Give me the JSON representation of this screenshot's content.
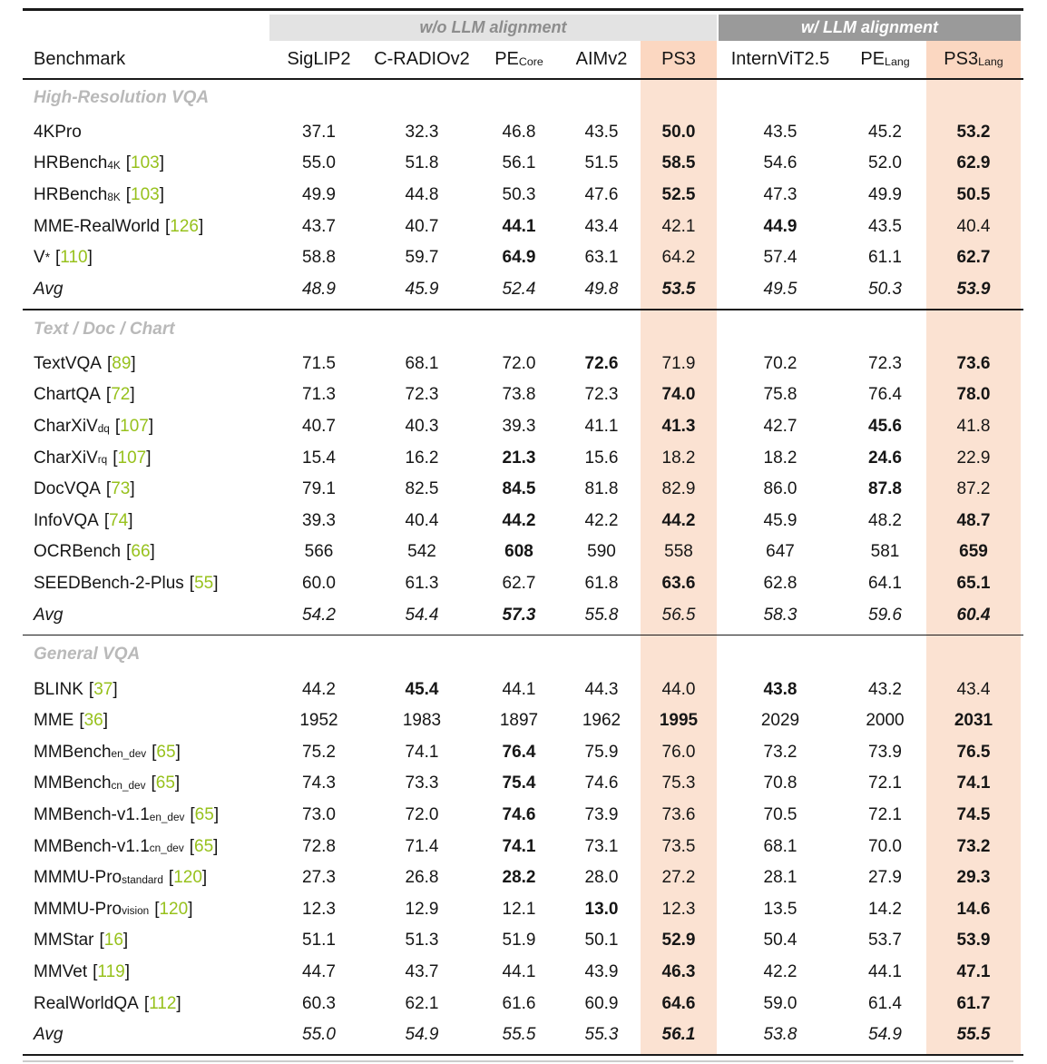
{
  "table": {
    "benchmark_header": "Benchmark",
    "groups": [
      {
        "label": "w/o LLM alignment"
      },
      {
        "label": "w/ LLM alignment"
      }
    ],
    "columns": [
      {
        "name": "SigLIP2",
        "sub": "",
        "group": 0,
        "highlight": false
      },
      {
        "name": "C-RADIOv2",
        "sub": "",
        "group": 0,
        "highlight": false
      },
      {
        "name": "PE",
        "sub": "Core",
        "group": 0,
        "highlight": false
      },
      {
        "name": "AIMv2",
        "sub": "",
        "group": 0,
        "highlight": false
      },
      {
        "name": "PS3",
        "sub": "",
        "group": 0,
        "highlight": true
      },
      {
        "name": "InternViT2.5",
        "sub": "",
        "group": 1,
        "highlight": false
      },
      {
        "name": "PE",
        "sub": "Lang",
        "group": 1,
        "highlight": false
      },
      {
        "name": "PS3",
        "sub": "Lang",
        "group": 1,
        "highlight": true
      }
    ],
    "sections": [
      {
        "title": "High-Resolution VQA",
        "rows": [
          {
            "name": "4KPro",
            "sub": "",
            "sup": "",
            "cite": "",
            "italic": false,
            "values": [
              "37.1",
              "32.3",
              "46.8",
              "43.5",
              "50.0",
              "43.5",
              "45.2",
              "53.2"
            ],
            "bold": [
              false,
              false,
              false,
              false,
              true,
              false,
              false,
              true
            ]
          },
          {
            "name": "HRBench",
            "sub": "4K",
            "sup": "",
            "cite": "103",
            "italic": false,
            "values": [
              "55.0",
              "51.8",
              "56.1",
              "51.5",
              "58.5",
              "54.6",
              "52.0",
              "62.9"
            ],
            "bold": [
              false,
              false,
              false,
              false,
              true,
              false,
              false,
              true
            ]
          },
          {
            "name": "HRBench",
            "sub": "8K",
            "sup": "",
            "cite": "103",
            "italic": false,
            "values": [
              "49.9",
              "44.8",
              "50.3",
              "47.6",
              "52.5",
              "47.3",
              "49.9",
              "50.5"
            ],
            "bold": [
              false,
              false,
              false,
              false,
              true,
              false,
              false,
              true
            ]
          },
          {
            "name": "MME-RealWorld",
            "sub": "",
            "sup": "",
            "cite": "126",
            "italic": false,
            "values": [
              "43.7",
              "40.7",
              "44.1",
              "43.4",
              "42.1",
              "44.9",
              "43.5",
              "40.4"
            ],
            "bold": [
              false,
              false,
              true,
              false,
              false,
              true,
              false,
              false
            ]
          },
          {
            "name": "V",
            "sub": "",
            "sup": "*",
            "cite": "110",
            "italic": false,
            "values": [
              "58.8",
              "59.7",
              "64.9",
              "63.1",
              "64.2",
              "57.4",
              "61.1",
              "62.7"
            ],
            "bold": [
              false,
              false,
              true,
              false,
              false,
              false,
              false,
              true
            ]
          },
          {
            "name": "Avg",
            "sub": "",
            "sup": "",
            "cite": "",
            "italic": true,
            "values": [
              "48.9",
              "45.9",
              "52.4",
              "49.8",
              "53.5",
              "49.5",
              "50.3",
              "53.9"
            ],
            "bold": [
              false,
              false,
              false,
              false,
              true,
              false,
              false,
              true
            ]
          }
        ]
      },
      {
        "title": "Text / Doc / Chart",
        "rows": [
          {
            "name": "TextVQA",
            "sub": "",
            "sup": "",
            "cite": "89",
            "italic": false,
            "values": [
              "71.5",
              "68.1",
              "72.0",
              "72.6",
              "71.9",
              "70.2",
              "72.3",
              "73.6"
            ],
            "bold": [
              false,
              false,
              false,
              true,
              false,
              false,
              false,
              true
            ]
          },
          {
            "name": "ChartQA",
            "sub": "",
            "sup": "",
            "cite": "72",
            "italic": false,
            "values": [
              "71.3",
              "72.3",
              "73.8",
              "72.3",
              "74.0",
              "75.8",
              "76.4",
              "78.0"
            ],
            "bold": [
              false,
              false,
              false,
              false,
              true,
              false,
              false,
              true
            ]
          },
          {
            "name": "CharXiV",
            "sub": "dq",
            "sup": "",
            "cite": "107",
            "italic": false,
            "values": [
              "40.7",
              "40.3",
              "39.3",
              "41.1",
              "41.3",
              "42.7",
              "45.6",
              "41.8"
            ],
            "bold": [
              false,
              false,
              false,
              false,
              true,
              false,
              true,
              false
            ]
          },
          {
            "name": "CharXiV",
            "sub": "rq",
            "sup": "",
            "cite": "107",
            "italic": false,
            "values": [
              "15.4",
              "16.2",
              "21.3",
              "15.6",
              "18.2",
              "18.2",
              "24.6",
              "22.9"
            ],
            "bold": [
              false,
              false,
              true,
              false,
              false,
              false,
              true,
              false
            ]
          },
          {
            "name": "DocVQA",
            "sub": "",
            "sup": "",
            "cite": "73",
            "italic": false,
            "values": [
              "79.1",
              "82.5",
              "84.5",
              "81.8",
              "82.9",
              "86.0",
              "87.8",
              "87.2"
            ],
            "bold": [
              false,
              false,
              true,
              false,
              false,
              false,
              true,
              false
            ]
          },
          {
            "name": "InfoVQA",
            "sub": "",
            "sup": "",
            "cite": "74",
            "italic": false,
            "values": [
              "39.3",
              "40.4",
              "44.2",
              "42.2",
              "44.2",
              "45.9",
              "48.2",
              "48.7"
            ],
            "bold": [
              false,
              false,
              true,
              false,
              true,
              false,
              false,
              true
            ]
          },
          {
            "name": "OCRBench",
            "sub": "",
            "sup": "",
            "cite": "66",
            "italic": false,
            "values": [
              "566",
              "542",
              "608",
              "590",
              "558",
              "647",
              "581",
              "659"
            ],
            "bold": [
              false,
              false,
              true,
              false,
              false,
              false,
              false,
              true
            ]
          },
          {
            "name": "SEEDBench-2-Plus",
            "sub": "",
            "sup": "",
            "cite": "55",
            "italic": false,
            "values": [
              "60.0",
              "61.3",
              "62.7",
              "61.8",
              "63.6",
              "62.8",
              "64.1",
              "65.1"
            ],
            "bold": [
              false,
              false,
              false,
              false,
              true,
              false,
              false,
              true
            ]
          },
          {
            "name": "Avg",
            "sub": "",
            "sup": "",
            "cite": "",
            "italic": true,
            "values": [
              "54.2",
              "54.4",
              "57.3",
              "55.8",
              "56.5",
              "58.3",
              "59.6",
              "60.4"
            ],
            "bold": [
              false,
              false,
              true,
              false,
              false,
              false,
              false,
              true
            ]
          }
        ]
      },
      {
        "title": "General VQA",
        "rows": [
          {
            "name": "BLINK",
            "sub": "",
            "sup": "",
            "cite": "37",
            "italic": false,
            "values": [
              "44.2",
              "45.4",
              "44.1",
              "44.3",
              "44.0",
              "43.8",
              "43.2",
              "43.4"
            ],
            "bold": [
              false,
              true,
              false,
              false,
              false,
              true,
              false,
              false
            ]
          },
          {
            "name": "MME",
            "sub": "",
            "sup": "",
            "cite": "36",
            "italic": false,
            "values": [
              "1952",
              "1983",
              "1897",
              "1962",
              "1995",
              "2029",
              "2000",
              "2031"
            ],
            "bold": [
              false,
              false,
              false,
              false,
              true,
              false,
              false,
              true
            ]
          },
          {
            "name": "MMBench",
            "sub": "en_dev",
            "sup": "",
            "cite": "65",
            "italic": false,
            "values": [
              "75.2",
              "74.1",
              "76.4",
              "75.9",
              "76.0",
              "73.2",
              "73.9",
              "76.5"
            ],
            "bold": [
              false,
              false,
              true,
              false,
              false,
              false,
              false,
              true
            ]
          },
          {
            "name": "MMBench",
            "sub": "cn_dev",
            "sup": "",
            "cite": "65",
            "italic": false,
            "values": [
              "74.3",
              "73.3",
              "75.4",
              "74.6",
              "75.3",
              "70.8",
              "72.1",
              "74.1"
            ],
            "bold": [
              false,
              false,
              true,
              false,
              false,
              false,
              false,
              true
            ]
          },
          {
            "name": "MMBench-v1.1",
            "sub": "en_dev",
            "sup": "",
            "cite": "65",
            "italic": false,
            "values": [
              "73.0",
              "72.0",
              "74.6",
              "73.9",
              "73.6",
              "70.5",
              "72.1",
              "74.5"
            ],
            "bold": [
              false,
              false,
              true,
              false,
              false,
              false,
              false,
              true
            ]
          },
          {
            "name": "MMBench-v1.1",
            "sub": "cn_dev",
            "sup": "",
            "cite": "65",
            "italic": false,
            "values": [
              "72.8",
              "71.4",
              "74.1",
              "73.1",
              "73.5",
              "68.1",
              "70.0",
              "73.2"
            ],
            "bold": [
              false,
              false,
              true,
              false,
              false,
              false,
              false,
              true
            ]
          },
          {
            "name": "MMMU-Pro",
            "sub": "standard",
            "sup": "",
            "cite": "120",
            "italic": false,
            "values": [
              "27.3",
              "26.8",
              "28.2",
              "28.0",
              "27.2",
              "28.1",
              "27.9",
              "29.3"
            ],
            "bold": [
              false,
              false,
              true,
              false,
              false,
              false,
              false,
              true
            ]
          },
          {
            "name": "MMMU-Pro",
            "sub": "vision",
            "sup": "",
            "cite": "120",
            "italic": false,
            "values": [
              "12.3",
              "12.9",
              "12.1",
              "13.0",
              "12.3",
              "13.5",
              "14.2",
              "14.6"
            ],
            "bold": [
              false,
              false,
              false,
              true,
              false,
              false,
              false,
              true
            ]
          },
          {
            "name": "MMStar",
            "sub": "",
            "sup": "",
            "cite": "16",
            "italic": false,
            "values": [
              "51.1",
              "51.3",
              "51.9",
              "50.1",
              "52.9",
              "50.4",
              "53.7",
              "53.9"
            ],
            "bold": [
              false,
              false,
              false,
              false,
              true,
              false,
              false,
              true
            ]
          },
          {
            "name": "MMVet",
            "sub": "",
            "sup": "",
            "cite": "119",
            "italic": false,
            "values": [
              "44.7",
              "43.7",
              "44.1",
              "43.9",
              "46.3",
              "42.2",
              "44.1",
              "47.1"
            ],
            "bold": [
              false,
              false,
              false,
              false,
              true,
              false,
              false,
              true
            ]
          },
          {
            "name": "RealWorldQA",
            "sub": "",
            "sup": "",
            "cite": "112",
            "italic": false,
            "values": [
              "60.3",
              "62.1",
              "61.6",
              "60.9",
              "64.6",
              "59.0",
              "61.4",
              "61.7"
            ],
            "bold": [
              false,
              false,
              false,
              false,
              true,
              false,
              false,
              true
            ]
          },
          {
            "name": "Avg",
            "sub": "",
            "sup": "",
            "cite": "",
            "italic": true,
            "values": [
              "55.0",
              "54.9",
              "55.5",
              "55.3",
              "56.1",
              "53.8",
              "54.9",
              "55.5"
            ],
            "bold": [
              false,
              false,
              false,
              false,
              true,
              false,
              false,
              true
            ]
          }
        ]
      }
    ]
  },
  "colors": {
    "text": "#161616",
    "rule": "#1a1a1a",
    "band_light_bg": "#e3e3e3",
    "band_light_text": "#8d8d8d",
    "band_dark_bg": "#9a9a9a",
    "band_dark_text": "#ffffff",
    "highlight_header_bg": "#fbd7c1",
    "highlight_cell_bg": "#fbe2d2",
    "citation": "#97c11c",
    "section_title": "#b9b9b9"
  }
}
